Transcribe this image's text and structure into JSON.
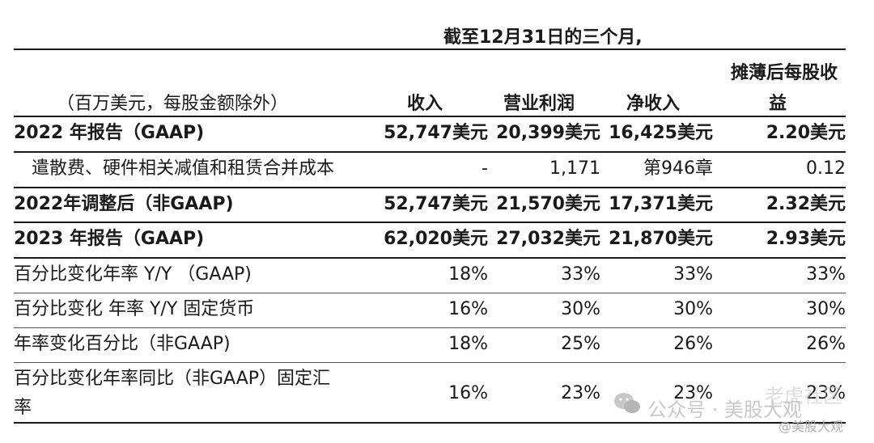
{
  "header": {
    "period": "截至12月31日的三个月,",
    "unit_note": "（百万美元，每股金额除外）",
    "col_revenue": "收入",
    "col_operating_income": "营业利润",
    "col_net_income": "净收入",
    "col_eps_line1": "摊薄后每股收",
    "col_eps_line2": "益"
  },
  "rows": [
    {
      "label": "2022 年报告（GAAP)",
      "revenue": "52,747美元",
      "op": "20,399美元",
      "net": "16,425美元",
      "eps": "2.20美元"
    },
    {
      "label": "遣散费、硬件相关减值和租赁合并成本",
      "revenue": "-",
      "op": "1,171",
      "net": "第946章",
      "eps": "0.12"
    },
    {
      "label": "2022年调整后（非GAAP)",
      "revenue": "52,747美元",
      "op": "21,570美元",
      "net": "17,371美元",
      "eps": "2.32美元"
    },
    {
      "label": "2023 年报告（GAAP)",
      "revenue": "62,020美元",
      "op": "27,032美元",
      "net": "21,870美元",
      "eps": "2.93美元"
    },
    {
      "label": "百分比变化年率 Y/Y （GAAP)",
      "revenue": "18%",
      "op": "33%",
      "net": "33%",
      "eps": "33%"
    },
    {
      "label": "百分比变化 年率 Y/Y 固定货币",
      "revenue": "16%",
      "op": "30%",
      "net": "30%",
      "eps": "30%"
    },
    {
      "label": "年率变化百分比（非GAAP)",
      "revenue": "18%",
      "op": "25%",
      "net": "26%",
      "eps": "26%"
    },
    {
      "label_line1": "百分比变化年率同比（非GAAP）固定汇",
      "label_line2": "率",
      "revenue": "16%",
      "op": "23%",
      "net": "23%",
      "eps": "23%"
    }
  ],
  "watermark": {
    "wechat": "公众号 · 美股大观",
    "handle": "@美股大观",
    "brand": "老虎社区"
  }
}
